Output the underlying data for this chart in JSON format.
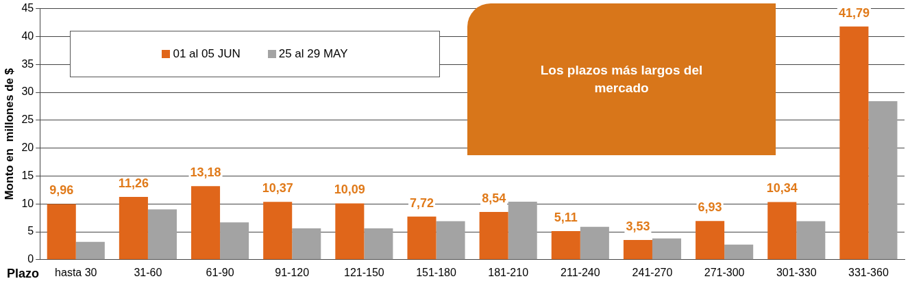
{
  "chart_data": {
    "type": "bar",
    "xlabel": "Plazo",
    "ylabel": "Monto en  millones de $",
    "categories": [
      "hasta 30",
      "31-60",
      "61-90",
      "91-120",
      "121-150",
      "151-180",
      "181-210",
      "211-240",
      "241-270",
      "271-300",
      "301-330",
      "331-360"
    ],
    "series": [
      {
        "name": "01 al 05 JUN",
        "color": "#e0661a",
        "values": [
          9.96,
          11.26,
          13.18,
          10.37,
          10.09,
          7.72,
          8.54,
          5.11,
          3.53,
          6.93,
          10.34,
          41.79
        ],
        "value_labels": [
          "9,96",
          "11,26",
          "13,18",
          "10,37",
          "10,09",
          "7,72",
          "8,54",
          "5,11",
          "3,53",
          "6,93",
          "10,34",
          "41,79"
        ]
      },
      {
        "name": "25 al 29 MAY",
        "color": "#a3a3a3",
        "values": [
          3.2,
          9.0,
          6.7,
          5.6,
          5.6,
          6.9,
          10.4,
          5.9,
          3.8,
          2.7,
          6.9,
          28.4
        ]
      }
    ],
    "ylim": [
      0,
      45
    ],
    "yticks": [
      0,
      5,
      10,
      15,
      20,
      25,
      30,
      35,
      40,
      45
    ],
    "grid": "y",
    "legend": "top left",
    "annotations": [
      "Los plazos más largos del mercado"
    ]
  }
}
